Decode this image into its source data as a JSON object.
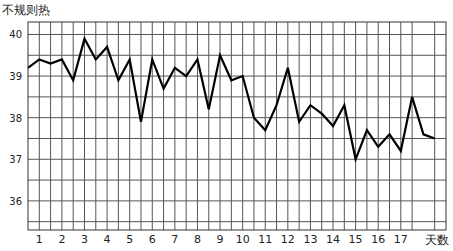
{
  "chart_data": {
    "type": "line",
    "title": "不规则热",
    "x_label": "天数",
    "x": [
      0.5,
      1,
      1.5,
      2,
      2.5,
      3,
      3.5,
      4,
      4.5,
      5,
      5.5,
      6,
      6.5,
      7,
      7.5,
      8,
      8.5,
      9,
      9.5,
      10,
      10.5,
      11,
      11.5,
      12,
      12.5,
      13,
      13.5,
      14,
      14.5,
      15,
      15.5,
      16,
      16.5,
      17,
      17.5,
      18,
      18.5
    ],
    "values": [
      39.2,
      39.4,
      39.3,
      39.4,
      38.9,
      39.9,
      39.4,
      39.7,
      38.9,
      39.4,
      37.9,
      39.4,
      38.7,
      39.2,
      39.0,
      39.4,
      38.2,
      39.5,
      38.9,
      39.0,
      38.0,
      37.7,
      38.3,
      39.2,
      37.9,
      38.3,
      38.1,
      37.8,
      38.3,
      37.0,
      37.7,
      37.3,
      37.6,
      37.2,
      38.5,
      37.6,
      37.5
    ],
    "color": "#000000",
    "xlim": [
      0.5,
      19
    ],
    "xticks": [
      1,
      2,
      3,
      4,
      5,
      6,
      7,
      8,
      9,
      10,
      11,
      12,
      13,
      14,
      15,
      16,
      17
    ],
    "ylim": [
      35.3,
      40.3
    ],
    "yticks": [
      36,
      37,
      38,
      39,
      40
    ],
    "grid": true
  }
}
